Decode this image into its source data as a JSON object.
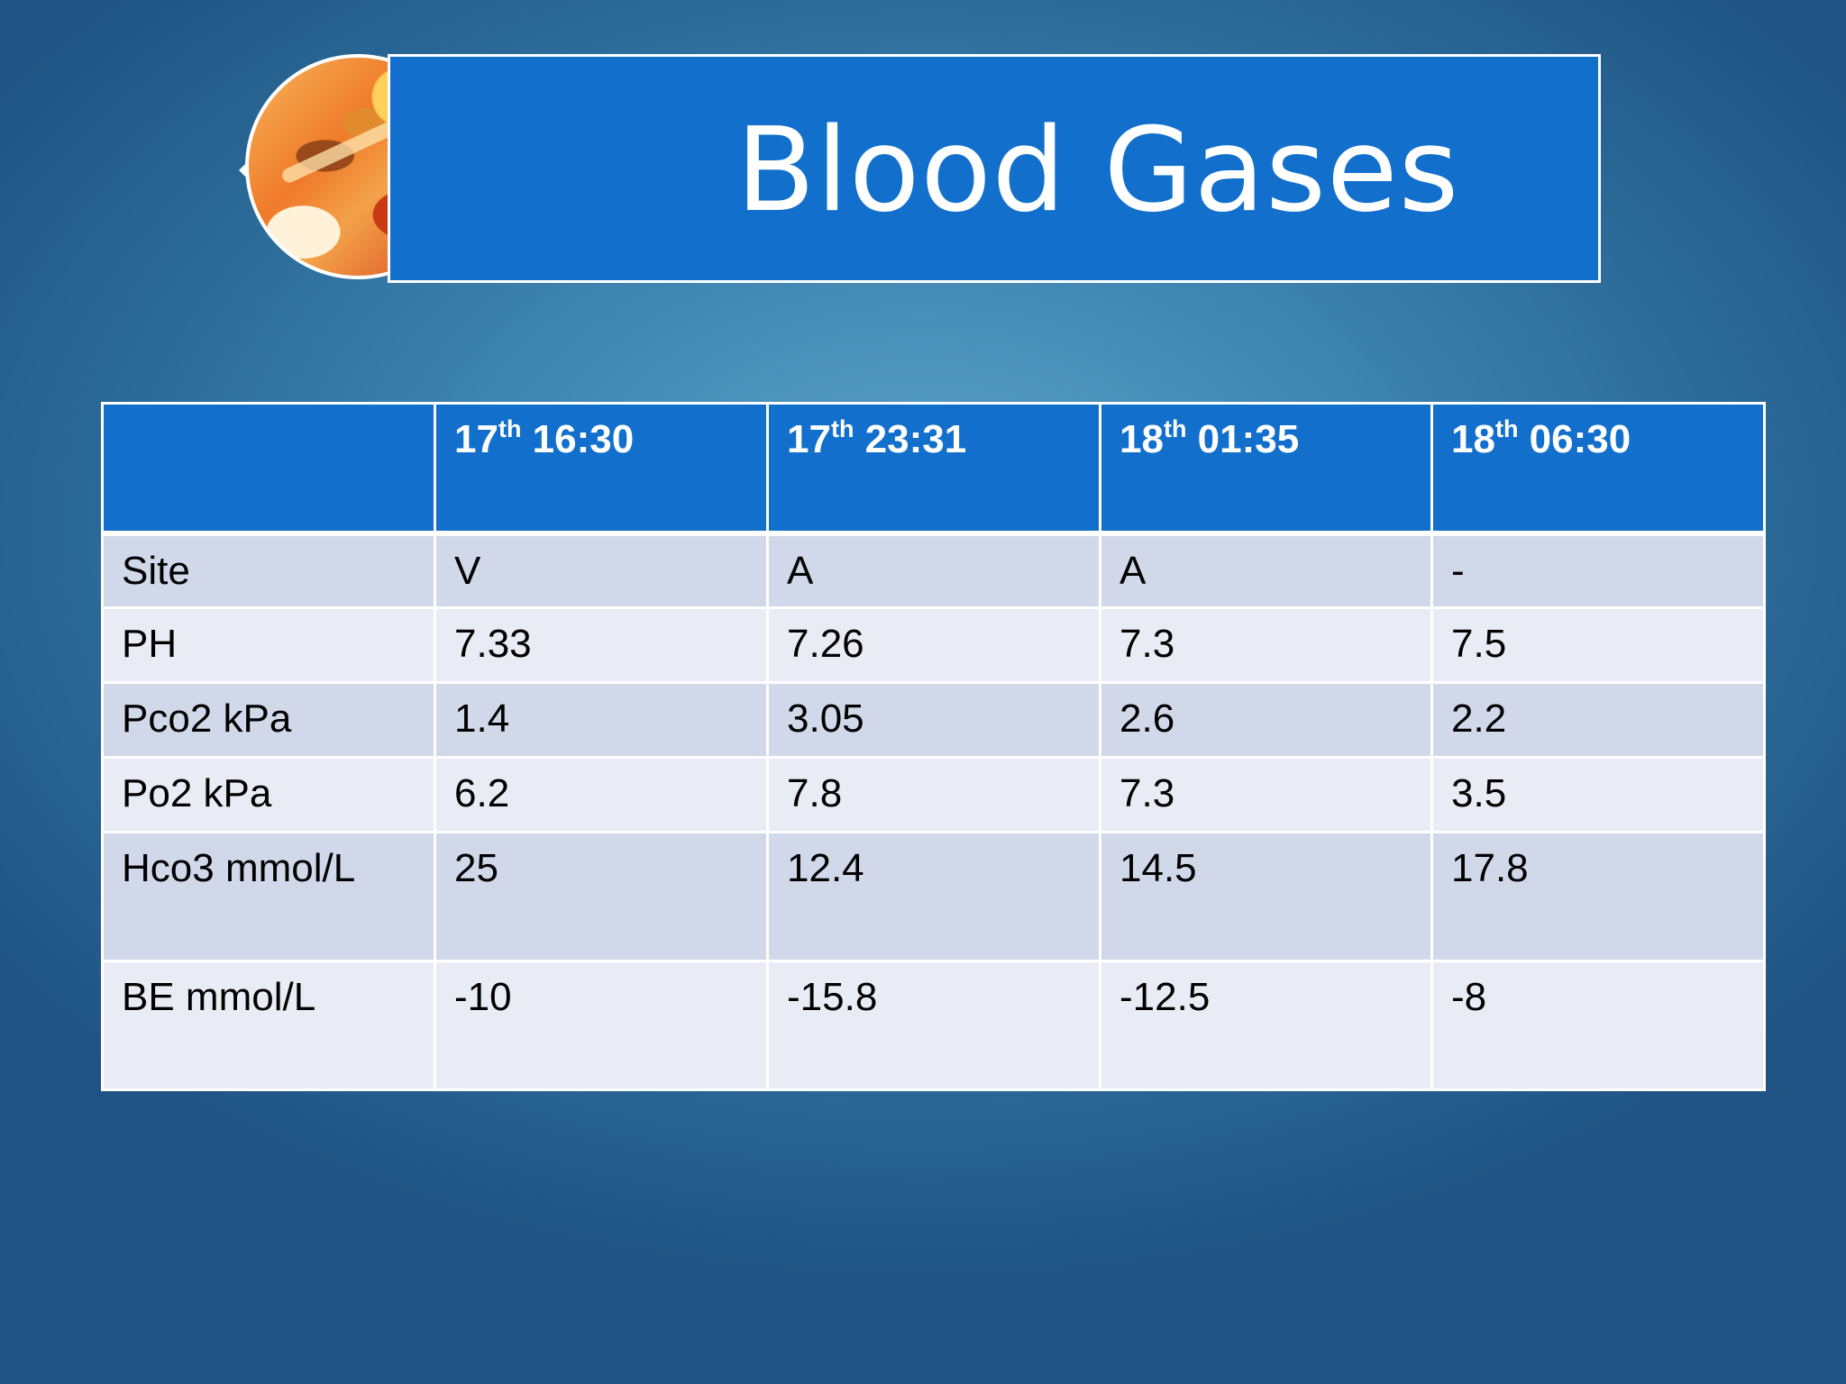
{
  "slide": {
    "title": "Blood Gases"
  },
  "table": {
    "headers": [
      {
        "day": "17",
        "suffix": "th",
        "time": "16:30"
      },
      {
        "day": "17",
        "suffix": "th",
        "time": "23:31"
      },
      {
        "day": "18",
        "suffix": "th",
        "time": "01:35"
      },
      {
        "day": "18",
        "suffix": "th",
        "time": "06:30"
      }
    ],
    "rows": [
      {
        "label": "Site",
        "values": [
          "V",
          "A",
          "A",
          "-"
        ]
      },
      {
        "label": "PH",
        "values": [
          "7.33",
          "7.26",
          "7.3",
          "7.5"
        ]
      },
      {
        "label": "Pco2 kPa",
        "values": [
          "1.4",
          "3.05",
          "2.6",
          "2.2"
        ]
      },
      {
        "label": "Po2 kPa",
        "values": [
          "6.2",
          "7.8",
          "7.3",
          "3.5"
        ]
      },
      {
        "label": "Hco3 mmol/L",
        "values": [
          "25",
          "12.4",
          "14.5",
          "17.8"
        ]
      },
      {
        "label": "BE mmol/L",
        "values": [
          "-10",
          "-15.8",
          "-12.5",
          "-8"
        ]
      }
    ]
  },
  "colors": {
    "banner": "#1270cc",
    "header_row": "#1270cc",
    "row_odd": "#d0d8e9",
    "row_even": "#e9ecf5",
    "background": "#3f87b3"
  },
  "image": {
    "icon": "orange-tissue-photo"
  }
}
